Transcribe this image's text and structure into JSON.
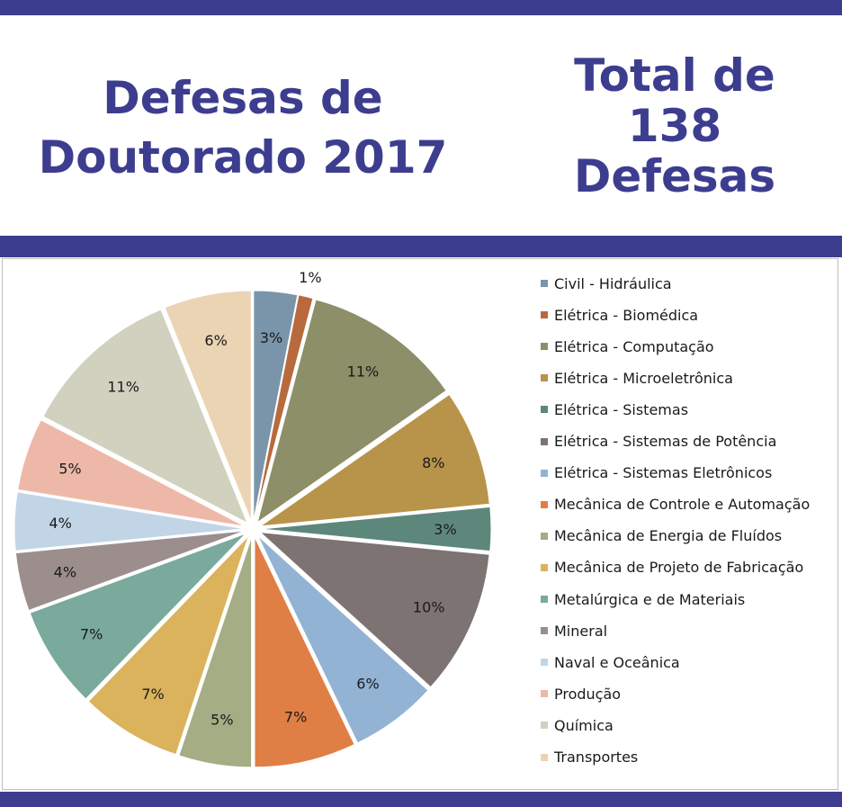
{
  "header": {
    "title": "Defesas de\nDoutorado 2017",
    "total": "Total de\n138\nDefesas"
  },
  "colors": {
    "accent": "#3d3d8f"
  },
  "chart_data": {
    "type": "pie",
    "title": "",
    "legend_position": "right",
    "labels": [
      "Civil - Hidráulica",
      "Elétrica - Biomédica",
      "Elétrica - Computação",
      "Elétrica - Microeletrônica",
      "Elétrica - Sistemas",
      "Elétrica - Sistemas de Potência",
      "Elétrica - Sistemas Eletrônicos",
      "Mecânica de Controle e Automação",
      "Mecânica de Energia de Fluídos",
      "Mecânica de Projeto de Fabricação",
      "Metalúrgica e de Materiais",
      "Mineral",
      "Naval e Oceânica",
      "Produção",
      "Química",
      "Transportes"
    ],
    "values": [
      3,
      1,
      11,
      8,
      3,
      10,
      6,
      7,
      5,
      7,
      7,
      4,
      4,
      5,
      11,
      6
    ],
    "value_labels": [
      "3%",
      "1%",
      "11%",
      "8%",
      "3%",
      "10%",
      "6%",
      "7%",
      "5%",
      "7%",
      "7%",
      "4%",
      "4%",
      "5%",
      "11%",
      "6%"
    ],
    "colors": [
      "#7a95aa",
      "#b86a3c",
      "#8c8f67",
      "#b8934a",
      "#5e877b",
      "#7d7373",
      "#92b3d3",
      "#e07f45",
      "#a4ad83",
      "#dab35c",
      "#79aa9c",
      "#9b8e8d",
      "#c2d5e7",
      "#eeb8a8",
      "#d0d2bf",
      "#ead4b4"
    ]
  }
}
